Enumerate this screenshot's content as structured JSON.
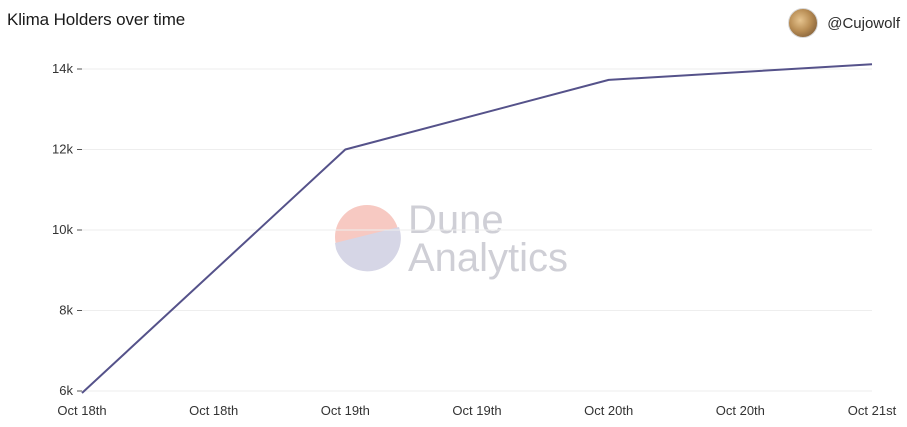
{
  "header": {
    "title": "Klima Holders over time",
    "user_handle": "@Cujowolf",
    "avatar_icon": "user-avatar"
  },
  "watermark": {
    "line1": "Dune",
    "line2": "Analytics",
    "logo_top_color": "#f7c9c2",
    "logo_bottom_color": "#d6d6e6"
  },
  "colors": {
    "line": "#55528a",
    "grid": "#eeeeee",
    "axis_text": "#333333"
  },
  "chart_data": {
    "type": "line",
    "title": "Klima Holders over time",
    "xlabel": "",
    "ylabel": "",
    "x_tick_labels": [
      "Oct 18th",
      "Oct 18th",
      "Oct 19th",
      "Oct 19th",
      "Oct 20th",
      "Oct 20th",
      "Oct 21st"
    ],
    "y_tick_labels": [
      "6k",
      "8k",
      "10k",
      "12k",
      "14k"
    ],
    "y_ticks": [
      6000,
      8000,
      10000,
      12000,
      14000
    ],
    "ylim": [
      6000,
      14000
    ],
    "xlim": [
      0,
      6
    ],
    "grid": true,
    "legend": "none",
    "series": [
      {
        "x": [
          0,
          2,
          4,
          6
        ],
        "values": [
          5950,
          12000,
          13730,
          14120
        ]
      }
    ]
  }
}
